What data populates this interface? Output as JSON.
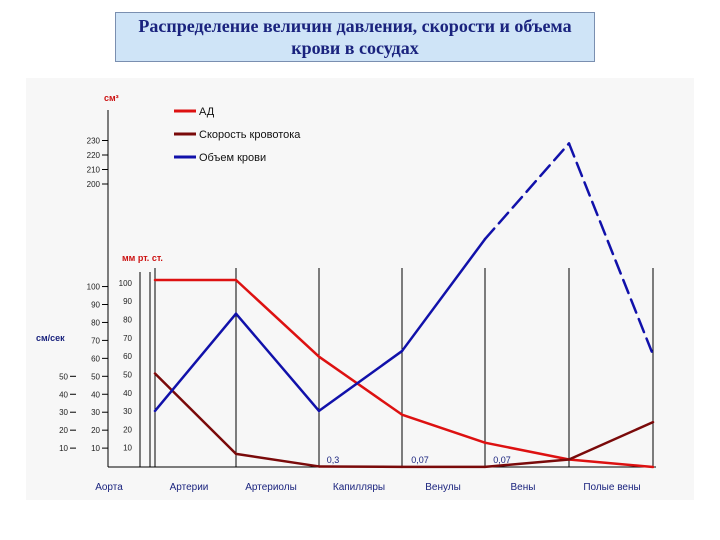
{
  "title": "Распределение величин давления, скорости и объема крови в сосудах",
  "chart_data": {
    "type": "line",
    "categories": [
      "Аорта",
      "Артерии",
      "Артериолы",
      "Капилляры",
      "Венулы",
      "Вены",
      "Полые вены"
    ],
    "units": {
      "volume": "см³",
      "pressure": "мм рт. ст.",
      "velocity": "см/сек"
    },
    "axes": {
      "volume_ticks": [
        200,
        210,
        220,
        230
      ],
      "pressure_ticks": [
        10,
        20,
        30,
        40,
        50,
        60,
        70,
        80,
        90,
        100
      ],
      "velocity_ticks": [
        10,
        20,
        30,
        40,
        50,
        60,
        70,
        80,
        90,
        100
      ],
      "velocity_ticks_short": [
        10,
        20,
        30,
        40,
        50
      ]
    },
    "grid": "vertical lines at category boundaries",
    "legend_position": "top-center",
    "series": [
      {
        "name": "АД",
        "color": "#dd1111",
        "x": [
          0,
          1,
          2,
          3,
          4,
          5,
          6
        ],
        "values": [
          100,
          100,
          59,
          28,
          13,
          4,
          0
        ]
      },
      {
        "name": "Скорость кровотока",
        "color": "#7a0a0a",
        "x": [
          0,
          1,
          2,
          3,
          4,
          5,
          6
        ],
        "values": [
          50,
          7,
          0.3,
          0.07,
          0.07,
          4,
          24
        ]
      },
      {
        "name": "Объем крови",
        "color": "#1111aa",
        "x": [
          0,
          1,
          2,
          3,
          4,
          5,
          6
        ],
        "values": [
          30,
          82,
          30,
          62,
          115,
          181,
          60
        ],
        "dashed_segments": [
          [
            4,
            5
          ],
          [
            5,
            6
          ]
        ]
      }
    ],
    "annotations": [
      "0,3",
      "0,07",
      "0,07"
    ]
  }
}
